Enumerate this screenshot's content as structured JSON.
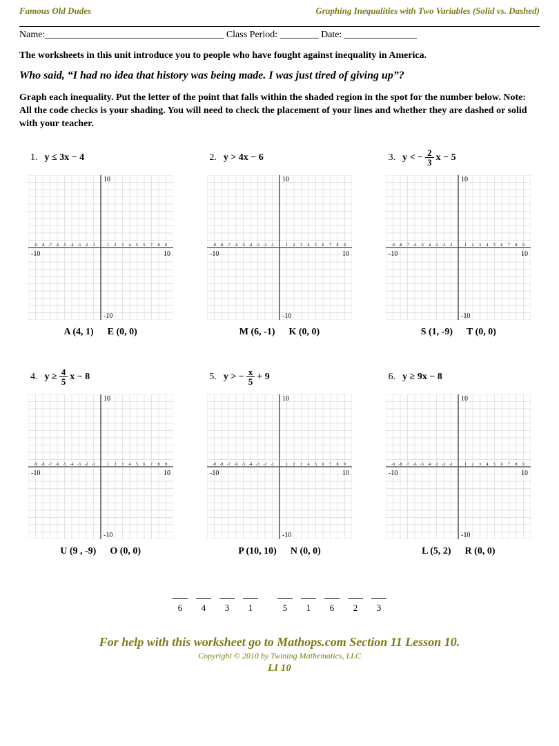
{
  "header": {
    "left": "Famous Old Dudes",
    "right": "Graphing Inequalities with Two Variables (Solid vs. Dashed)"
  },
  "nameline": "Name:_____________________________________ Class Period: ________  Date: _______________",
  "intro": "The worksheets in this unit introduce you to people who have fought against inequality in America.",
  "quote": "Who said, “I had no idea that history was being made. I was just tired of giving up”?",
  "instructions": "Graph each inequality.  Put the letter of the point that falls within the shaded region in the spot for the number below.  Note:  All the code checks is your shading.  You will need to check the placement of your lines and whether they are dashed or solid with your teacher.",
  "grid": {
    "size": 210,
    "cells": 20,
    "xlim": [
      -10,
      10
    ],
    "ylim": [
      -10,
      10
    ],
    "grid_color": "#d9d9d9",
    "axis_color": "#5a5a5a",
    "tick_font": 6,
    "label_font": 10,
    "top_label": "10",
    "bottom_label": "-10",
    "left_lbl_out": "-10",
    "right_lbl_out": "10",
    "neg_ticks": [
      "-9",
      "-8",
      "-7",
      "-6",
      "-5",
      "-4",
      "-3",
      "-2",
      "-1"
    ],
    "pos_ticks": [
      "1",
      "2",
      "3",
      "4",
      "5",
      "6",
      "7",
      "8",
      "9"
    ]
  },
  "problems": [
    {
      "num": "1.",
      "ineq_parts": [
        "y ≤ 3x − 4"
      ],
      "points": [
        {
          "l": "A",
          "c": "(4, 1)"
        },
        {
          "l": "E",
          "c": "(0, 0)"
        }
      ]
    },
    {
      "num": "2.",
      "ineq_parts": [
        "y > 4x − 6"
      ],
      "points": [
        {
          "l": "M",
          "c": "(6, -1)"
        },
        {
          "l": "K",
          "c": "(0, 0)"
        }
      ]
    },
    {
      "num": "3.",
      "ineq_parts": [
        "y < − ",
        {
          "frac": [
            "2",
            "3"
          ]
        },
        " x − 5"
      ],
      "points": [
        {
          "l": "S",
          "c": "(1, -9)"
        },
        {
          "l": "T",
          "c": "(0, 0)"
        }
      ]
    },
    {
      "num": "4.",
      "ineq_parts": [
        "y ≥ ",
        {
          "frac": [
            "4",
            "5"
          ]
        },
        " x − 8"
      ],
      "points": [
        {
          "l": "U",
          "c": "(9 , -9)"
        },
        {
          "l": "O",
          "c": "(0, 0)"
        }
      ]
    },
    {
      "num": "5.",
      "ineq_parts": [
        "y > − ",
        {
          "frac": [
            "x",
            "5"
          ]
        },
        " + 9"
      ],
      "points": [
        {
          "l": "P",
          "c": "(10, 10)"
        },
        {
          "l": "N",
          "c": "(0, 0)"
        }
      ]
    },
    {
      "num": "6.",
      "ineq_parts": [
        "y ≥ 9x − 8"
      ],
      "points": [
        {
          "l": "L",
          "c": "(5, 2)"
        },
        {
          "l": "R",
          "c": "(0, 0)"
        }
      ]
    }
  ],
  "answer": {
    "group1": [
      "6",
      "4",
      "3",
      "1"
    ],
    "group2": [
      "5",
      "1",
      "6",
      "2",
      "3"
    ]
  },
  "footer": {
    "l1": "For help with this worksheet go to Mathops.com Section 11 Lesson 10.",
    "l2": "Copyright © 2010 by Twining Mathematics, LLC",
    "l3": "LI 10"
  }
}
